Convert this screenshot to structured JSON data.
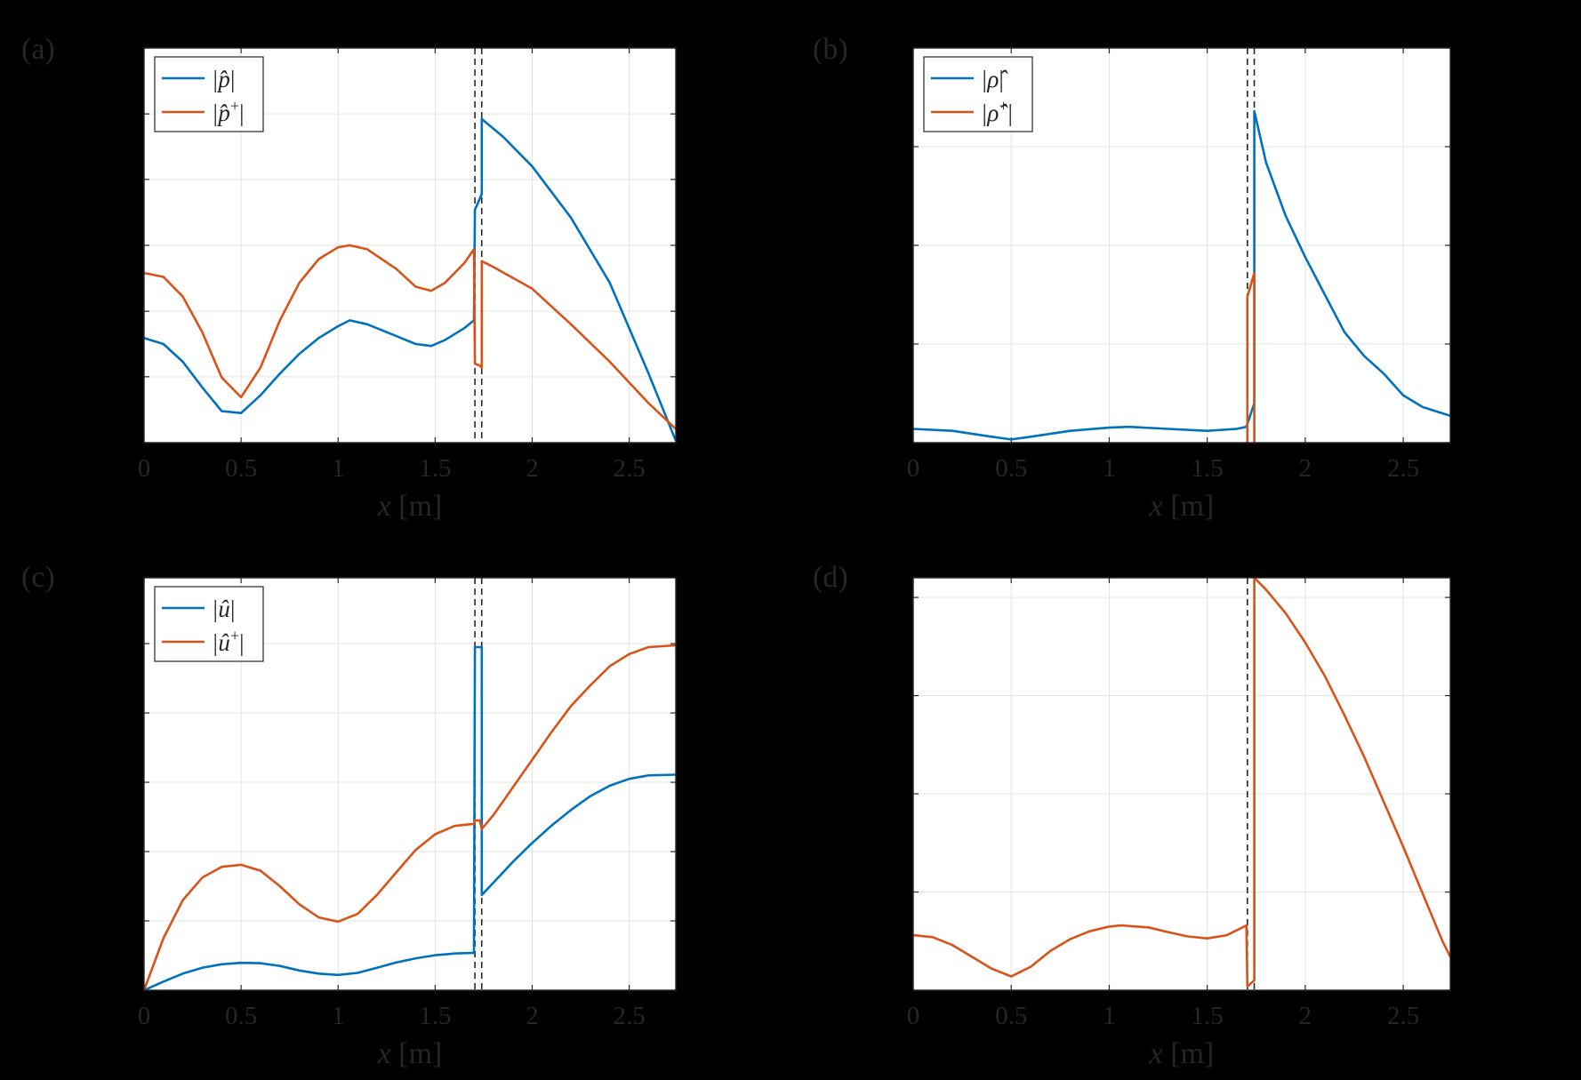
{
  "chart_data": [
    {
      "panel_label": "(a)",
      "type": "line",
      "xlabel_var": "x",
      "xlabel_unit": "[m]",
      "xlim": [
        0,
        2.74
      ],
      "ylim": [
        0,
        1
      ],
      "xticks": [
        0,
        0.5,
        1,
        1.5,
        2,
        2.5
      ],
      "xtick_labels": [
        "0",
        "0.5",
        "1",
        "1.5",
        "2",
        "2.5"
      ],
      "yticks": [
        0,
        0.167,
        0.333,
        0.5,
        0.667,
        0.833,
        1
      ],
      "grid": true,
      "legend_position": "top-left",
      "vlines": [
        1.705,
        1.74
      ],
      "series": [
        {
          "name": "|p̂|",
          "legend_base": "|p̂",
          "legend_sup": "",
          "color": "#0072BD",
          "points": [
            [
              0,
              0.265
            ],
            [
              0.1,
              0.25
            ],
            [
              0.2,
              0.205
            ],
            [
              0.3,
              0.14
            ],
            [
              0.4,
              0.08
            ],
            [
              0.5,
              0.075
            ],
            [
              0.6,
              0.12
            ],
            [
              0.7,
              0.175
            ],
            [
              0.8,
              0.225
            ],
            [
              0.9,
              0.265
            ],
            [
              1.0,
              0.295
            ],
            [
              1.06,
              0.31
            ],
            [
              1.15,
              0.3
            ],
            [
              1.3,
              0.27
            ],
            [
              1.4,
              0.25
            ],
            [
              1.48,
              0.245
            ],
            [
              1.55,
              0.26
            ],
            [
              1.65,
              0.29
            ],
            [
              1.7,
              0.31
            ],
            [
              1.705,
              0.59
            ],
            [
              1.74,
              0.63
            ],
            [
              1.74,
              0.82
            ],
            [
              1.85,
              0.775
            ],
            [
              2.0,
              0.7
            ],
            [
              2.2,
              0.57
            ],
            [
              2.4,
              0.405
            ],
            [
              2.6,
              0.175
            ],
            [
              2.74,
              0.005
            ]
          ]
        },
        {
          "name": "|p̂⁺|",
          "legend_base": "|p̂",
          "legend_sup": "+",
          "color": "#D95319",
          "points": [
            [
              0,
              0.43
            ],
            [
              0.1,
              0.42
            ],
            [
              0.2,
              0.37
            ],
            [
              0.3,
              0.28
            ],
            [
              0.4,
              0.165
            ],
            [
              0.5,
              0.115
            ],
            [
              0.6,
              0.19
            ],
            [
              0.7,
              0.31
            ],
            [
              0.8,
              0.405
            ],
            [
              0.9,
              0.465
            ],
            [
              1.0,
              0.495
            ],
            [
              1.06,
              0.5
            ],
            [
              1.15,
              0.49
            ],
            [
              1.3,
              0.44
            ],
            [
              1.4,
              0.395
            ],
            [
              1.48,
              0.385
            ],
            [
              1.55,
              0.405
            ],
            [
              1.65,
              0.455
            ],
            [
              1.7,
              0.49
            ],
            [
              1.705,
              0.2
            ],
            [
              1.73,
              0.195
            ],
            [
              1.74,
              0.19
            ],
            [
              1.74,
              0.46
            ],
            [
              1.8,
              0.445
            ],
            [
              2.0,
              0.39
            ],
            [
              2.2,
              0.3
            ],
            [
              2.4,
              0.205
            ],
            [
              2.6,
              0.1
            ],
            [
              2.74,
              0.035
            ]
          ]
        }
      ]
    },
    {
      "panel_label": "(b)",
      "type": "line",
      "xlabel_var": "x",
      "xlabel_unit": "[m]",
      "xlim": [
        0,
        2.74
      ],
      "ylim": [
        0,
        1
      ],
      "xticks": [
        0,
        0.5,
        1,
        1.5,
        2,
        2.5
      ],
      "xtick_labels": [
        "0",
        "0.5",
        "1",
        "1.5",
        "2",
        "2.5"
      ],
      "yticks": [
        0,
        0.25,
        0.5,
        0.75,
        1
      ],
      "grid": true,
      "legend_position": "top-left",
      "vlines": [
        1.705,
        1.74
      ],
      "series": [
        {
          "name": "|ρ̂|",
          "legend_base": "|ρ̂",
          "legend_sup": "",
          "color": "#0072BD",
          "points": [
            [
              0,
              0.035
            ],
            [
              0.2,
              0.03
            ],
            [
              0.4,
              0.015
            ],
            [
              0.5,
              0.008
            ],
            [
              0.6,
              0.015
            ],
            [
              0.8,
              0.03
            ],
            [
              1.0,
              0.038
            ],
            [
              1.1,
              0.04
            ],
            [
              1.3,
              0.035
            ],
            [
              1.5,
              0.03
            ],
            [
              1.65,
              0.035
            ],
            [
              1.7,
              0.04
            ],
            [
              1.74,
              0.1
            ],
            [
              1.74,
              0.84
            ],
            [
              1.8,
              0.71
            ],
            [
              1.9,
              0.575
            ],
            [
              2.0,
              0.47
            ],
            [
              2.1,
              0.375
            ],
            [
              2.2,
              0.28
            ],
            [
              2.3,
              0.22
            ],
            [
              2.4,
              0.175
            ],
            [
              2.5,
              0.12
            ],
            [
              2.6,
              0.09
            ],
            [
              2.74,
              0.068
            ]
          ]
        },
        {
          "name": "|ρ̂⁺|",
          "legend_base": "|ρ̂",
          "legend_sup": "+",
          "color": "#D95319",
          "points": [
            [
              1.705,
              0.0
            ],
            [
              1.705,
              0.37
            ],
            [
              1.74,
              0.43
            ],
            [
              1.74,
              0.0
            ]
          ]
        }
      ]
    },
    {
      "panel_label": "(c)",
      "type": "line",
      "xlabel_var": "x",
      "xlabel_unit": "[m]",
      "xlim": [
        0,
        2.74
      ],
      "ylim": [
        0,
        1.19
      ],
      "xticks": [
        0,
        0.5,
        1,
        1.5,
        2,
        2.5
      ],
      "xtick_labels": [
        "0",
        "0.5",
        "1",
        "1.5",
        "2",
        "2.5"
      ],
      "yticks": [
        0,
        0.2,
        0.4,
        0.6,
        0.8,
        1.0
      ],
      "grid": true,
      "legend_position": "top-left",
      "vlines": [
        1.705,
        1.74
      ],
      "series": [
        {
          "name": "|û|",
          "legend_base": "|û",
          "legend_sup": "",
          "color": "#0072BD",
          "points": [
            [
              0,
              0.0
            ],
            [
              0.1,
              0.025
            ],
            [
              0.2,
              0.048
            ],
            [
              0.3,
              0.065
            ],
            [
              0.4,
              0.075
            ],
            [
              0.5,
              0.079
            ],
            [
              0.6,
              0.078
            ],
            [
              0.7,
              0.07
            ],
            [
              0.8,
              0.057
            ],
            [
              0.9,
              0.048
            ],
            [
              1.0,
              0.044
            ],
            [
              1.1,
              0.05
            ],
            [
              1.2,
              0.065
            ],
            [
              1.3,
              0.08
            ],
            [
              1.4,
              0.092
            ],
            [
              1.5,
              0.101
            ],
            [
              1.6,
              0.106
            ],
            [
              1.7,
              0.108
            ],
            [
              1.705,
              0.99
            ],
            [
              1.74,
              0.99
            ],
            [
              1.74,
              0.275
            ],
            [
              1.8,
              0.31
            ],
            [
              1.9,
              0.37
            ],
            [
              2.0,
              0.425
            ],
            [
              2.1,
              0.475
            ],
            [
              2.2,
              0.52
            ],
            [
              2.3,
              0.56
            ],
            [
              2.4,
              0.59
            ],
            [
              2.5,
              0.61
            ],
            [
              2.6,
              0.62
            ],
            [
              2.74,
              0.622
            ]
          ]
        },
        {
          "name": "|û⁺|",
          "legend_base": "|û",
          "legend_sup": "+",
          "color": "#D95319",
          "points": [
            [
              0,
              0.0
            ],
            [
              0.1,
              0.15
            ],
            [
              0.2,
              0.26
            ],
            [
              0.3,
              0.325
            ],
            [
              0.4,
              0.356
            ],
            [
              0.5,
              0.362
            ],
            [
              0.6,
              0.345
            ],
            [
              0.7,
              0.3
            ],
            [
              0.8,
              0.248
            ],
            [
              0.9,
              0.21
            ],
            [
              1.0,
              0.198
            ],
            [
              1.1,
              0.22
            ],
            [
              1.2,
              0.275
            ],
            [
              1.3,
              0.34
            ],
            [
              1.4,
              0.405
            ],
            [
              1.5,
              0.45
            ],
            [
              1.6,
              0.474
            ],
            [
              1.7,
              0.48
            ],
            [
              1.705,
              0.49
            ],
            [
              1.73,
              0.49
            ],
            [
              1.74,
              0.465
            ],
            [
              1.8,
              0.505
            ],
            [
              1.9,
              0.585
            ],
            [
              2.0,
              0.665
            ],
            [
              2.1,
              0.745
            ],
            [
              2.2,
              0.82
            ],
            [
              2.3,
              0.88
            ],
            [
              2.4,
              0.935
            ],
            [
              2.5,
              0.97
            ],
            [
              2.6,
              0.99
            ],
            [
              2.74,
              0.995
            ]
          ]
        }
      ]
    },
    {
      "panel_label": "(d)",
      "type": "line",
      "xlabel_var": "x",
      "xlabel_unit": "[m]",
      "xlim": [
        0,
        2.74
      ],
      "ylim": [
        0,
        1.05
      ],
      "xticks": [
        0,
        0.5,
        1,
        1.5,
        2,
        2.5
      ],
      "xtick_labels": [
        "0",
        "0.5",
        "1",
        "1.5",
        "2",
        "2.5"
      ],
      "yticks": [
        0,
        0.25,
        0.5,
        0.75,
        1.0
      ],
      "grid": true,
      "legend_position": "none",
      "vlines": [
        1.705,
        1.74
      ],
      "series": [
        {
          "name": "",
          "legend_base": "",
          "legend_sup": "",
          "color": "#D95319",
          "points": [
            [
              0,
              0.14
            ],
            [
              0.1,
              0.135
            ],
            [
              0.2,
              0.115
            ],
            [
              0.3,
              0.085
            ],
            [
              0.4,
              0.055
            ],
            [
              0.5,
              0.035
            ],
            [
              0.6,
              0.06
            ],
            [
              0.7,
              0.1
            ],
            [
              0.8,
              0.13
            ],
            [
              0.9,
              0.15
            ],
            [
              1.0,
              0.162
            ],
            [
              1.06,
              0.165
            ],
            [
              1.2,
              0.16
            ],
            [
              1.3,
              0.148
            ],
            [
              1.4,
              0.137
            ],
            [
              1.5,
              0.132
            ],
            [
              1.6,
              0.14
            ],
            [
              1.7,
              0.165
            ],
            [
              1.705,
              0.01
            ],
            [
              1.74,
              0.025
            ],
            [
              1.74,
              1.05
            ],
            [
              1.8,
              1.02
            ],
            [
              1.9,
              0.96
            ],
            [
              2.0,
              0.885
            ],
            [
              2.1,
              0.8
            ],
            [
              2.2,
              0.7
            ],
            [
              2.3,
              0.595
            ],
            [
              2.4,
              0.48
            ],
            [
              2.5,
              0.365
            ],
            [
              2.6,
              0.245
            ],
            [
              2.7,
              0.125
            ],
            [
              2.74,
              0.085
            ]
          ]
        }
      ]
    }
  ]
}
